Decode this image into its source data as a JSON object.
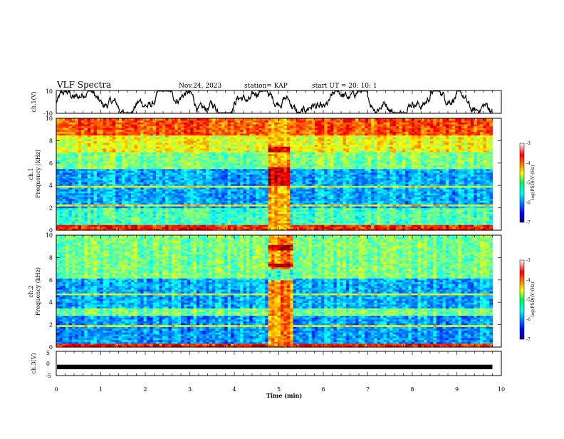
{
  "header": {
    "title": "VLF Spectra",
    "date": "Nov.24, 2023",
    "station": "station= KAP",
    "start": "start  UT =   20: 10: 1"
  },
  "chart_data": [
    {
      "type": "line",
      "panel": "ch1-waveform",
      "ylabel": "ch.1(V)",
      "ylim": [
        -10,
        10
      ],
      "yticks": [
        "10",
        "-10"
      ],
      "xlim": [
        0,
        10
      ],
      "series_color": "#000000",
      "note_values": "continuous noisy waveform oscillating roughly between -8 and +8 V over 0–9.8 min"
    },
    {
      "type": "heatmap",
      "panel": "ch1-spectrogram",
      "ylabel_line1": "ch.1",
      "ylabel_line2": "Frequency (kHz)",
      "ylim": [
        0,
        10
      ],
      "yticks": [
        "0",
        "2",
        "4",
        "6",
        "8",
        "10"
      ],
      "xlim": [
        0,
        10
      ],
      "data_end_min": 9.8,
      "burst_interval_min": [
        4.75,
        5.25
      ],
      "colorbar": {
        "label": "log(PSD)(V²/Hz)",
        "range": [
          -7,
          -3
        ],
        "ticks": [
          "-3",
          "-4",
          "-5",
          "-6",
          "-7"
        ]
      }
    },
    {
      "type": "heatmap",
      "panel": "ch2-spectrogram",
      "ylabel_line1": "ch.2",
      "ylabel_line2": "Frequency (kHz)",
      "ylim": [
        0,
        10
      ],
      "yticks": [
        "0",
        "2",
        "4",
        "6",
        "8",
        "10"
      ],
      "xlim": [
        0,
        10
      ],
      "data_end_min": 9.8,
      "burst_interval_min": [
        4.75,
        5.3
      ],
      "colorbar": {
        "label": "log(PSD)(V²/Hz)",
        "range": [
          -7,
          -3
        ],
        "ticks": [
          "-3",
          "-4",
          "-5",
          "-6",
          "-7"
        ]
      }
    },
    {
      "type": "line",
      "panel": "ch3-waveform",
      "ylabel": "ch.3(V)",
      "ylim": [
        -5,
        5
      ],
      "yticks": [
        "5",
        "0",
        "-5"
      ],
      "xlim": [
        0,
        10
      ],
      "xlabel": "Time  (min)",
      "xticks": [
        "0",
        "1",
        "2",
        "3",
        "4",
        "5",
        "6",
        "7",
        "8",
        "9",
        "10"
      ],
      "series_color": "#000000",
      "level_v": -1,
      "level_thickness_v": 1
    }
  ]
}
